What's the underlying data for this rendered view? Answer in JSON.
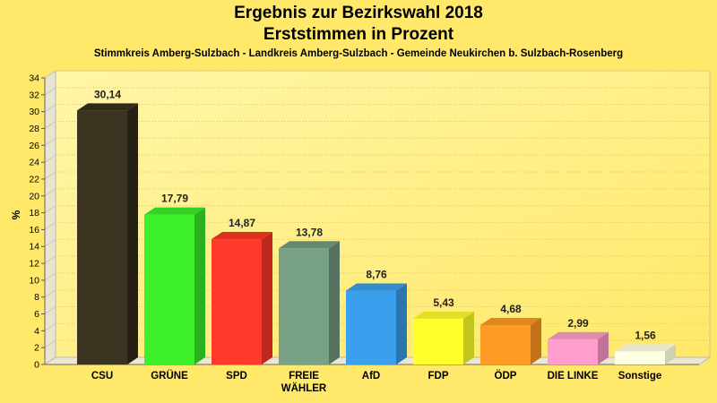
{
  "chart_data": {
    "type": "bar",
    "title": "Ergebnis zur Bezirkswahl 2018",
    "subtitle": "Erststimmen in Prozent",
    "caption": "Stimmkreis Amberg-Sulzbach - Landkreis Amberg-Sulzbach - Gemeinde Neukirchen b. Sulzbach-Rosenberg",
    "ylabel": "%",
    "xlabel": "",
    "ylim": [
      0,
      34
    ],
    "ytick_step": 2,
    "grid": true,
    "categories": [
      "CSU",
      "GRÜNE",
      "SPD",
      "FREIE WÄHLER",
      "AfD",
      "FDP",
      "ÖDP",
      "DIE LINKE",
      "Sonstige"
    ],
    "category_lines": [
      [
        "CSU"
      ],
      [
        "GRÜNE"
      ],
      [
        "SPD"
      ],
      [
        "FREIE",
        "WÄHLER"
      ],
      [
        "AfD"
      ],
      [
        "FDP"
      ],
      [
        "ÖDP"
      ],
      [
        "DIE LINKE"
      ],
      [
        "Sonstige"
      ]
    ],
    "values": [
      30.14,
      17.79,
      14.87,
      13.78,
      8.76,
      5.43,
      4.68,
      2.99,
      1.56
    ],
    "value_labels": [
      "30,14",
      "17,79",
      "14,87",
      "13,78",
      "8,76",
      "5,43",
      "4,68",
      "2,99",
      "1,56"
    ],
    "colors": [
      "#3a3320",
      "#3cf02c",
      "#ff3a2a",
      "#77a085",
      "#3aa0ee",
      "#ffff2c",
      "#ff9a24",
      "#ff9ecf",
      "#ffffe6"
    ],
    "side_colors": [
      "#262014",
      "#2bb01f",
      "#c0281c",
      "#56735f",
      "#2a76b0",
      "#c4c41f",
      "#c4721a",
      "#c07398",
      "#cfcfb6"
    ],
    "top_colors": [
      "#2f2a1a",
      "#34d226",
      "#de3021",
      "#668a71",
      "#338bd0",
      "#e0e026",
      "#e0861f",
      "#e08ab4",
      "#e6e6cc"
    ]
  }
}
